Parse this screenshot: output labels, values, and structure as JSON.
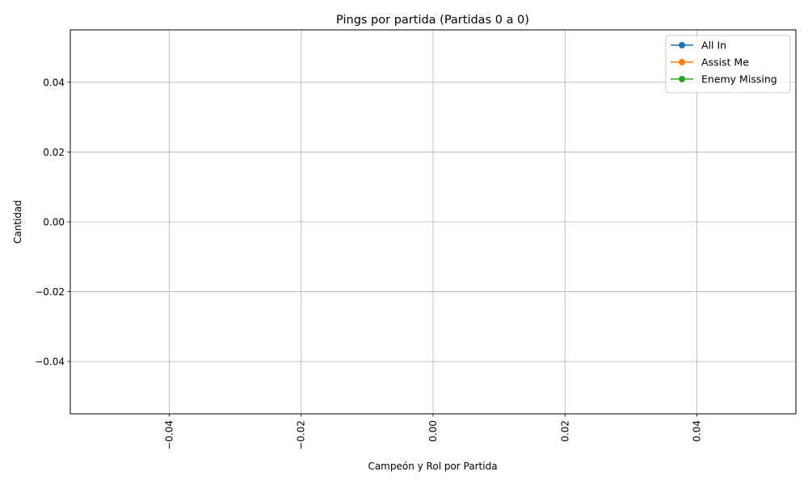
{
  "chart_data": {
    "type": "line",
    "title": "Pings por partida (Partidas 0 a 0)",
    "xlabel": "Campeón y Rol por Partida",
    "ylabel": "Cantidad",
    "xlim": [
      -0.055,
      0.055
    ],
    "ylim": [
      -0.055,
      0.055
    ],
    "x_ticks": [
      "−0.04",
      "−0.02",
      "0.00",
      "0.02",
      "0.04"
    ],
    "x_tick_values": [
      -0.04,
      -0.02,
      0.0,
      0.02,
      0.04
    ],
    "x_tick_rotation": 90,
    "y_ticks": [
      "−0.04",
      "−0.02",
      "0.00",
      "0.02",
      "0.04"
    ],
    "y_tick_values": [
      -0.04,
      -0.02,
      0.0,
      0.02,
      0.04
    ],
    "grid": true,
    "legend_position": "top-right",
    "series": [
      {
        "name": "All In",
        "color": "#1f77b4",
        "marker": "circle",
        "x": [],
        "values": []
      },
      {
        "name": "Assist Me",
        "color": "#ff7f0e",
        "marker": "circle",
        "x": [],
        "values": []
      },
      {
        "name": "Enemy Missing",
        "color": "#2ca02c",
        "marker": "circle",
        "x": [],
        "values": []
      }
    ]
  }
}
